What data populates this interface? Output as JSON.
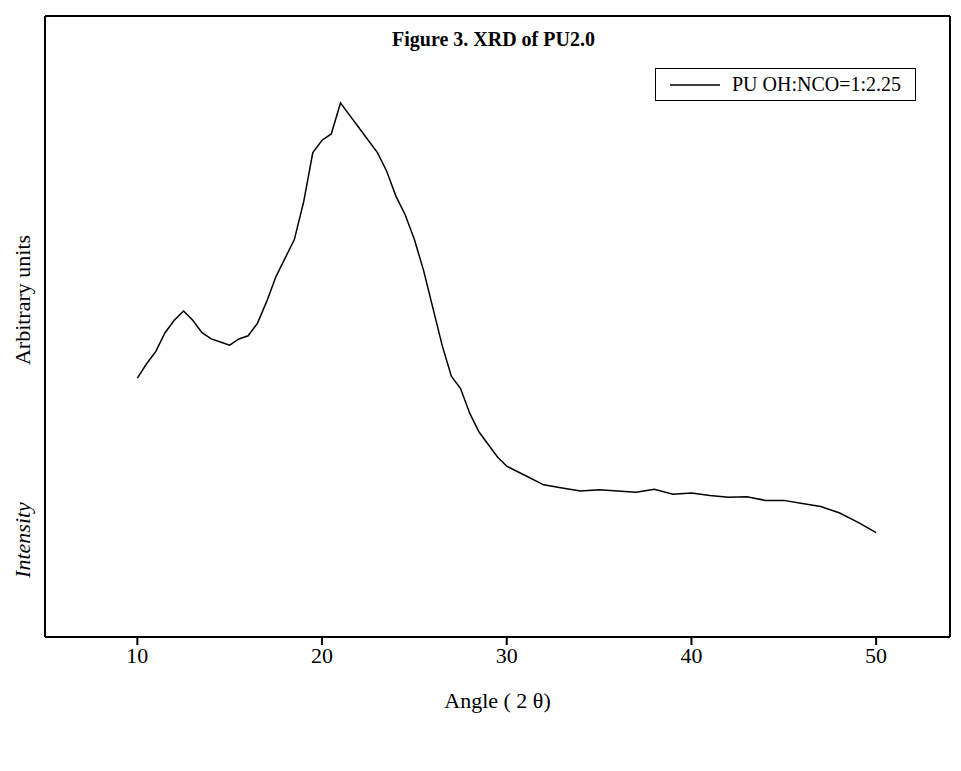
{
  "chart_data": {
    "type": "line",
    "title": "Figure 3. XRD of PU2.0",
    "xlabel": "Angle ( 2 θ)",
    "ylabel": "Arbitrary units",
    "annotations": [
      "Intensity"
    ],
    "x": [
      10,
      10.5,
      11,
      11.5,
      12,
      12.5,
      13,
      13.5,
      14,
      14.5,
      15,
      15.5,
      16,
      16.5,
      17,
      17.5,
      18,
      18.5,
      19,
      19.5,
      20,
      20.5,
      21,
      21.5,
      22,
      22.5,
      23,
      23.5,
      24,
      24.5,
      25,
      25.5,
      26,
      26.5,
      27,
      27.5,
      28,
      28.5,
      29,
      29.5,
      30,
      31,
      32,
      33,
      34,
      35,
      36,
      37,
      38,
      39,
      40,
      41,
      42,
      43,
      44,
      45,
      46,
      47,
      48,
      49,
      50
    ],
    "series": [
      {
        "name": "PU OH:NCO=1:2.25",
        "color": "#000000",
        "values": [
          41.7,
          44,
          46,
          49,
          51,
          52.5,
          51,
          49,
          48,
          47.5,
          47,
          48,
          48.5,
          50.5,
          54,
          58,
          61,
          64,
          70,
          78,
          80,
          81,
          86,
          84,
          82,
          80,
          78,
          75,
          71,
          68,
          64,
          59,
          53,
          47,
          42,
          40,
          36,
          33,
          31,
          29,
          27.5,
          26,
          24.5,
          24,
          23.5,
          23.7,
          23.5,
          23.3,
          23.8,
          23,
          23.2,
          22.8,
          22.5,
          22.6,
          22,
          22,
          21.5,
          21,
          20,
          18.5,
          16.8
        ]
      }
    ],
    "xlim": [
      5,
      54
    ],
    "xticks": [
      10,
      20,
      30,
      40,
      50
    ],
    "ylim": [
      0,
      100
    ],
    "tick_labels": "x",
    "legend": "upper right",
    "grid": false
  }
}
